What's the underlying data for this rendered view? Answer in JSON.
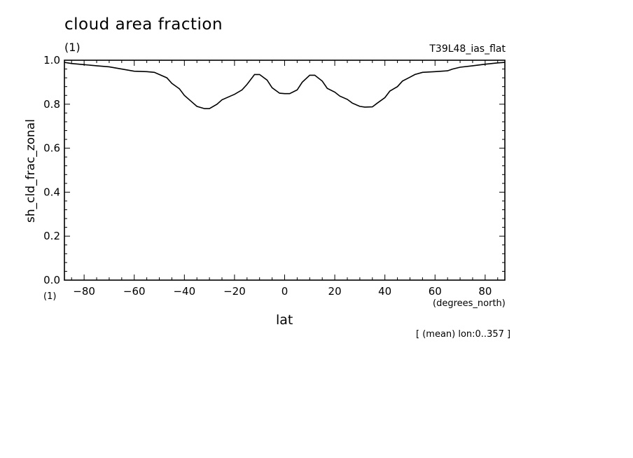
{
  "chart_data": {
    "type": "line",
    "title": "cloud area fraction",
    "y_unit": "(1)",
    "run_label": "T39L48_ias_flat",
    "ylabel": "sh_cld_frac_zonal",
    "y_unit_bottom": "(1)",
    "xlabel": "lat",
    "x_unit": "(degrees_north)",
    "note": "[ (mean) lon:0..357 ]",
    "xlim": [
      -87.86,
      87.86
    ],
    "ylim": [
      0.0,
      1.0
    ],
    "x_ticks": [
      -80,
      -60,
      -40,
      -20,
      0,
      20,
      40,
      60,
      80
    ],
    "x_tick_labels": [
      "−80",
      "−60",
      "−40",
      "−20",
      "0",
      "20",
      "40",
      "60",
      "80"
    ],
    "y_ticks": [
      0.0,
      0.2,
      0.4,
      0.6,
      0.8,
      1.0
    ],
    "y_tick_labels": [
      "0.0",
      "0.2",
      "0.4",
      "0.6",
      "0.8",
      "1.0"
    ],
    "line_color": "#000000",
    "series": [
      {
        "x": [
          -87.86,
          -85,
          -80,
          -75,
          -70,
          -65,
          -60,
          -55,
          -52,
          -50,
          -47,
          -45,
          -42,
          -40,
          -37,
          -35,
          -32,
          -30,
          -27,
          -25,
          -22,
          -20,
          -17,
          -15,
          -12,
          -10,
          -7,
          -5,
          -2,
          0,
          2,
          5,
          7,
          10,
          12,
          15,
          17,
          20,
          22,
          25,
          27,
          30,
          32,
          35,
          37,
          40,
          42,
          45,
          47,
          50,
          52,
          55,
          60,
          65,
          67,
          70,
          75,
          80,
          85,
          87.86
        ],
        "y": [
          0.99,
          0.985,
          0.98,
          0.975,
          0.97,
          0.96,
          0.95,
          0.948,
          0.945,
          0.935,
          0.92,
          0.895,
          0.87,
          0.84,
          0.81,
          0.79,
          0.78,
          0.78,
          0.8,
          0.82,
          0.835,
          0.845,
          0.865,
          0.89,
          0.935,
          0.935,
          0.91,
          0.875,
          0.85,
          0.848,
          0.848,
          0.865,
          0.9,
          0.932,
          0.932,
          0.905,
          0.872,
          0.855,
          0.837,
          0.822,
          0.805,
          0.79,
          0.787,
          0.788,
          0.805,
          0.83,
          0.86,
          0.88,
          0.905,
          0.923,
          0.935,
          0.945,
          0.948,
          0.952,
          0.96,
          0.968,
          0.975,
          0.982,
          0.988,
          0.99
        ]
      }
    ]
  }
}
